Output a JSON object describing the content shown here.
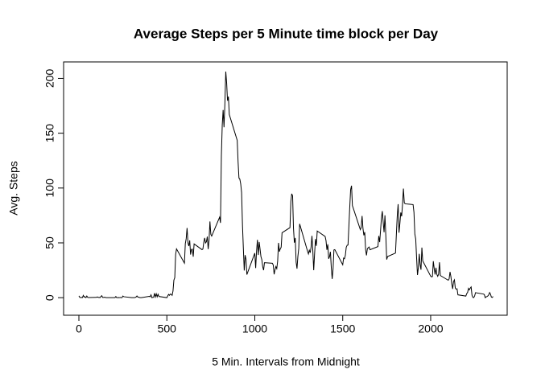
{
  "chart_data": {
    "type": "line",
    "title": "Average Steps per 5 Minute time block per Day",
    "xlabel": "5 Min. Intervals from Midnight",
    "ylabel": "Avg. Steps",
    "color": "#000000",
    "xlim": [
      -87,
      2435
    ],
    "ylim": [
      -16,
      215
    ],
    "xticks": [
      0,
      500,
      1000,
      1500,
      2000
    ],
    "yticks": [
      0,
      50,
      100,
      150,
      200
    ],
    "x": [
      0,
      5,
      10,
      15,
      20,
      25,
      30,
      35,
      40,
      45,
      50,
      55,
      100,
      105,
      110,
      115,
      120,
      125,
      130,
      135,
      140,
      145,
      150,
      155,
      200,
      205,
      210,
      215,
      220,
      225,
      230,
      235,
      240,
      245,
      250,
      255,
      300,
      305,
      310,
      315,
      320,
      325,
      330,
      335,
      340,
      345,
      350,
      355,
      400,
      405,
      410,
      415,
      420,
      425,
      430,
      435,
      440,
      445,
      450,
      455,
      500,
      505,
      510,
      515,
      520,
      525,
      530,
      535,
      540,
      545,
      550,
      555,
      600,
      605,
      610,
      615,
      620,
      625,
      630,
      635,
      640,
      645,
      650,
      655,
      700,
      705,
      710,
      715,
      720,
      725,
      730,
      735,
      740,
      745,
      750,
      755,
      800,
      805,
      810,
      815,
      820,
      825,
      830,
      835,
      840,
      845,
      850,
      855,
      900,
      905,
      910,
      915,
      920,
      925,
      930,
      935,
      940,
      945,
      950,
      955,
      1000,
      1005,
      1010,
      1015,
      1020,
      1025,
      1030,
      1035,
      1040,
      1045,
      1050,
      1055,
      1100,
      1105,
      1110,
      1115,
      1120,
      1125,
      1130,
      1135,
      1140,
      1145,
      1150,
      1155,
      1200,
      1205,
      1210,
      1215,
      1220,
      1225,
      1230,
      1235,
      1240,
      1245,
      1250,
      1255,
      1300,
      1305,
      1310,
      1315,
      1320,
      1325,
      1330,
      1335,
      1340,
      1345,
      1350,
      1355,
      1400,
      1405,
      1410,
      1415,
      1420,
      1425,
      1430,
      1435,
      1440,
      1445,
      1450,
      1455,
      1500,
      1505,
      1510,
      1515,
      1520,
      1525,
      1530,
      1535,
      1540,
      1545,
      1550,
      1555,
      1600,
      1605,
      1610,
      1615,
      1620,
      1625,
      1630,
      1635,
      1640,
      1645,
      1650,
      1655,
      1700,
      1705,
      1710,
      1715,
      1720,
      1725,
      1730,
      1735,
      1740,
      1745,
      1750,
      1755,
      1800,
      1805,
      1810,
      1815,
      1820,
      1825,
      1830,
      1835,
      1840,
      1845,
      1850,
      1855,
      1900,
      1905,
      1910,
      1915,
      1920,
      1925,
      1930,
      1935,
      1940,
      1945,
      1950,
      1955,
      2000,
      2005,
      2010,
      2015,
      2020,
      2025,
      2030,
      2035,
      2040,
      2045,
      2050,
      2055,
      2100,
      2105,
      2110,
      2115,
      2120,
      2125,
      2130,
      2135,
      2140,
      2145,
      2150,
      2155,
      2200,
      2205,
      2210,
      2215,
      2220,
      2225,
      2230,
      2235,
      2240,
      2245,
      2250,
      2255,
      2300,
      2305,
      2310,
      2315,
      2320,
      2325,
      2330,
      2335,
      2340,
      2345,
      2350,
      2355
    ],
    "values": [
      1.7,
      0.3,
      0.1,
      0.2,
      0.1,
      2.1,
      0.5,
      0.9,
      0,
      1.5,
      0.3,
      0.1,
      0.3,
      0.7,
      0.2,
      0.3,
      0,
      1.1,
      1.8,
      0.2,
      0.2,
      0.4,
      0.3,
      0,
      0,
      0,
      1.1,
      0,
      0,
      0.1,
      0,
      0.2,
      0,
      0,
      1.5,
      0.9,
      0,
      0,
      0,
      0,
      0.2,
      0.6,
      1.6,
      0.6,
      0.5,
      0.1,
      0,
      0,
      1.2,
      0.9,
      2.6,
      0,
      0.3,
      0.4,
      4.1,
      0.7,
      3.5,
      0.8,
      3.1,
      1.1,
      0,
      1.6,
      3,
      2.2,
      3.3,
      3,
      2.1,
      6.1,
      16,
      18.3,
      39.5,
      44.5,
      31.5,
      49.3,
      53.8,
      63.5,
      50,
      47.1,
      52.2,
      39.3,
      44,
      44.2,
      37.4,
      49,
      43.8,
      44.4,
      50.5,
      54.5,
      49.9,
      51,
      55.7,
      44.3,
      52.3,
      69.5,
      57.8,
      56.2,
      73.4,
      68.2,
      129.4,
      157.5,
      171.2,
      155.4,
      177.3,
      206.2,
      195.9,
      179.6,
      183.4,
      167,
      143.5,
      124,
      109.1,
      108.1,
      103.7,
      95.9,
      66.2,
      45.2,
      24.8,
      38.8,
      35,
      21.1,
      40.6,
      27,
      42.4,
      52.7,
      38.9,
      50.8,
      44.3,
      37.4,
      34.7,
      28.3,
      25.1,
      31.9,
      31.4,
      29.7,
      21.3,
      25.5,
      28.4,
      26.5,
      33.4,
      50,
      42,
      44.6,
      46,
      59.2,
      63.9,
      87.7,
      94.8,
      92.8,
      63.4,
      50.2,
      54.5,
      32.4,
      26.5,
      37.7,
      45,
      67.3,
      42.3,
      39.9,
      43.3,
      41,
      46.2,
      56.4,
      42.8,
      25.1,
      40,
      53.5,
      47.3,
      60.8,
      55.8,
      52,
      43.6,
      48.7,
      35.5,
      37.5,
      41.8,
      27.5,
      17.1,
      26.1,
      43.6,
      43.8,
      30,
      36.1,
      35.5,
      38.8,
      46,
      47.8,
      48.1,
      65.3,
      82.9,
      98.7,
      102.1,
      84,
      62.1,
      64.1,
      74.5,
      63.2,
      56.9,
      59.8,
      43.9,
      38.6,
      44.7,
      45.5,
      46.2,
      43.7,
      46.6,
      56.3,
      50.7,
      61.2,
      72.7,
      78.9,
      68.9,
      59.7,
      75.1,
      56.5,
      34.8,
      37.5,
      40.7,
      58,
      74.7,
      85.3,
      59.3,
      67.8,
      77.7,
      74.2,
      85.3,
      99.5,
      86.6,
      85.6,
      84.9,
      77.8,
      58,
      53.4,
      36.3,
      20.7,
      27.4,
      40,
      30.2,
      25.5,
      45.7,
      33.5,
      19.6,
      19,
      19.3,
      33.3,
      26.8,
      21.2,
      27.3,
      21.3,
      19.5,
      21.3,
      32.3,
      20.2,
      15.9,
      17.2,
      23.5,
      19.2,
      12.5,
      8,
      14.7,
      16.3,
      8.7,
      7.8,
      8.1,
      2.6,
      1.5,
      3.7,
      4.8,
      8.5,
      7.1,
      8.7,
      9.8,
      2.2,
      0.3,
      0.1,
      1.6,
      4.6,
      3.3,
      2.8,
      0,
      0.8,
      1,
      1.6,
      2.6,
      4.7,
      3.3,
      0.6,
      0.2,
      1.1
    ]
  }
}
